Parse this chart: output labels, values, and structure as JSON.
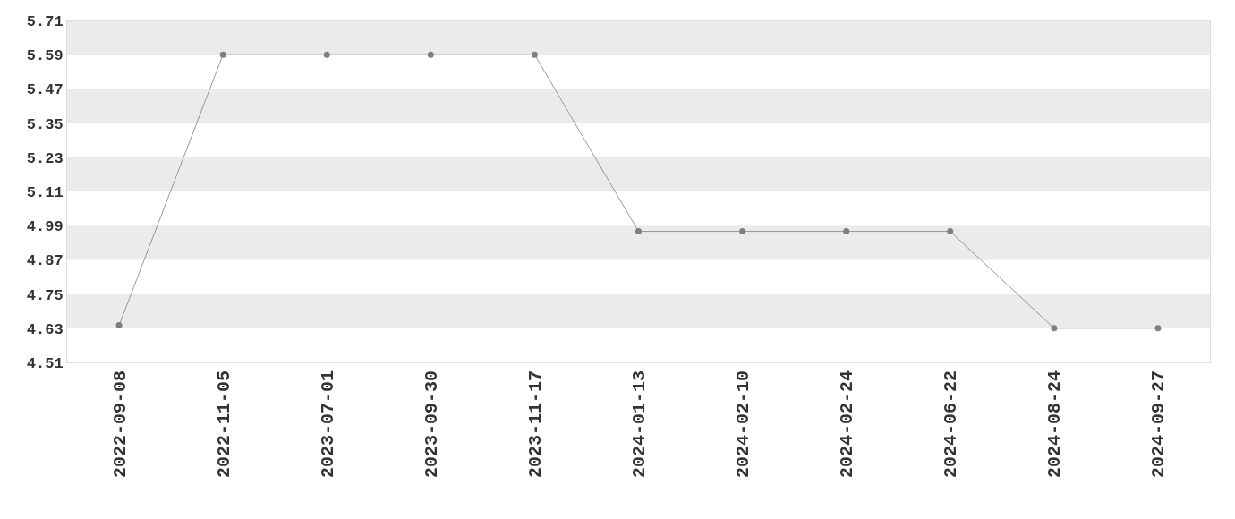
{
  "chart_data": {
    "type": "line",
    "categories": [
      "2022-09-08",
      "2022-11-05",
      "2023-07-01",
      "2023-09-30",
      "2023-11-17",
      "2024-01-13",
      "2024-02-10",
      "2024-02-24",
      "2024-06-22",
      "2024-08-24",
      "2024-09-27"
    ],
    "series": [
      {
        "color": "#7f7f7f",
        "values": [
          4.64,
          5.59,
          5.59,
          5.59,
          5.59,
          4.97,
          4.97,
          4.97,
          4.97,
          4.63,
          4.63
        ]
      }
    ],
    "ylim": [
      4.51,
      5.71
    ],
    "yticks": [
      4.51,
      4.63,
      4.75,
      4.87,
      4.99,
      5.11,
      5.23,
      5.35,
      5.47,
      5.59,
      5.71
    ],
    "bands": [
      {
        "axis": "y",
        "from": 4.63,
        "to": 4.75,
        "color": "#ebebeb"
      },
      {
        "axis": "y",
        "from": 4.87,
        "to": 4.99,
        "color": "#ebebeb"
      },
      {
        "axis": "y",
        "from": 5.11,
        "to": 5.23,
        "color": "#ebebeb"
      },
      {
        "axis": "y",
        "from": 5.35,
        "to": 5.47,
        "color": "#ebebeb"
      },
      {
        "axis": "y",
        "from": 5.59,
        "to": 5.71,
        "color": "#ebebeb"
      }
    ],
    "marker": "circle",
    "line_style": "solid"
  }
}
